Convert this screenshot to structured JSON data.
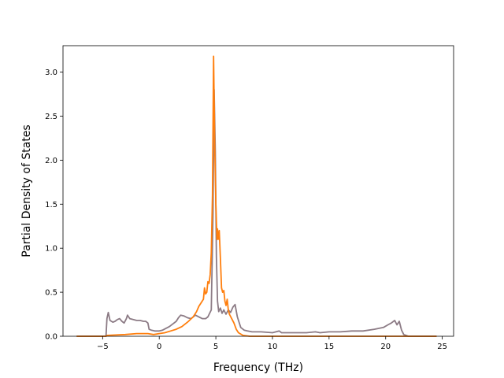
{
  "chart_data": {
    "type": "line",
    "title": "",
    "xlabel": "Frequency (THz)",
    "ylabel": "Partial Density of States",
    "xlim": [
      -8.5,
      26
    ],
    "ylim": [
      0,
      3.3
    ],
    "xticks": [
      -5,
      0,
      5,
      10,
      15,
      20,
      25
    ],
    "xtick_labels": [
      "−5",
      "0",
      "5",
      "10",
      "15",
      "20",
      "25"
    ],
    "yticks": [
      0.0,
      0.5,
      1.0,
      1.5,
      2.0,
      2.5,
      3.0
    ],
    "ytick_labels": [
      "0.0",
      "0.5",
      "1.0",
      "1.5",
      "2.0",
      "2.5",
      "3.0"
    ],
    "grid": false,
    "legend": "none",
    "series": [
      {
        "color": "#8c7b85",
        "points": [
          [
            -7.3,
            0.0
          ],
          [
            -5.0,
            0.0
          ],
          [
            -4.7,
            0.0
          ],
          [
            -4.62,
            0.2
          ],
          [
            -4.5,
            0.27
          ],
          [
            -4.35,
            0.18
          ],
          [
            -4.1,
            0.16
          ],
          [
            -3.9,
            0.17
          ],
          [
            -3.7,
            0.19
          ],
          [
            -3.5,
            0.2
          ],
          [
            -3.3,
            0.17
          ],
          [
            -3.1,
            0.15
          ],
          [
            -2.9,
            0.2
          ],
          [
            -2.8,
            0.24
          ],
          [
            -2.6,
            0.2
          ],
          [
            -2.3,
            0.19
          ],
          [
            -2.0,
            0.18
          ],
          [
            -1.7,
            0.18
          ],
          [
            -1.4,
            0.17
          ],
          [
            -1.2,
            0.17
          ],
          [
            -1.0,
            0.15
          ],
          [
            -0.9,
            0.08
          ],
          [
            -0.7,
            0.07
          ],
          [
            -0.4,
            0.06
          ],
          [
            0.0,
            0.06
          ],
          [
            0.3,
            0.07
          ],
          [
            0.6,
            0.09
          ],
          [
            0.9,
            0.11
          ],
          [
            1.2,
            0.14
          ],
          [
            1.5,
            0.17
          ],
          [
            1.7,
            0.21
          ],
          [
            1.9,
            0.24
          ],
          [
            2.2,
            0.23
          ],
          [
            2.5,
            0.21
          ],
          [
            2.8,
            0.2
          ],
          [
            3.0,
            0.22
          ],
          [
            3.2,
            0.24
          ],
          [
            3.5,
            0.22
          ],
          [
            3.8,
            0.2
          ],
          [
            4.1,
            0.2
          ],
          [
            4.3,
            0.22
          ],
          [
            4.6,
            0.3
          ],
          [
            4.75,
            1.4
          ],
          [
            4.85,
            2.8
          ],
          [
            4.95,
            2.1
          ],
          [
            5.05,
            0.9
          ],
          [
            5.15,
            0.4
          ],
          [
            5.25,
            0.28
          ],
          [
            5.4,
            0.32
          ],
          [
            5.55,
            0.26
          ],
          [
            5.7,
            0.3
          ],
          [
            5.9,
            0.25
          ],
          [
            6.1,
            0.3
          ],
          [
            6.3,
            0.27
          ],
          [
            6.5,
            0.33
          ],
          [
            6.7,
            0.36
          ],
          [
            6.9,
            0.22
          ],
          [
            7.2,
            0.1
          ],
          [
            7.5,
            0.07
          ],
          [
            7.8,
            0.06
          ],
          [
            8.2,
            0.05
          ],
          [
            9.0,
            0.05
          ],
          [
            10.0,
            0.04
          ],
          [
            10.6,
            0.06
          ],
          [
            10.8,
            0.04
          ],
          [
            12.0,
            0.04
          ],
          [
            13.0,
            0.04
          ],
          [
            13.8,
            0.05
          ],
          [
            14.2,
            0.04
          ],
          [
            15.0,
            0.05
          ],
          [
            16.0,
            0.05
          ],
          [
            17.0,
            0.06
          ],
          [
            18.0,
            0.06
          ],
          [
            19.0,
            0.08
          ],
          [
            19.8,
            0.1
          ],
          [
            20.2,
            0.13
          ],
          [
            20.5,
            0.15
          ],
          [
            20.8,
            0.18
          ],
          [
            21.0,
            0.13
          ],
          [
            21.2,
            0.17
          ],
          [
            21.4,
            0.07
          ],
          [
            21.6,
            0.02
          ],
          [
            22.0,
            0.0
          ],
          [
            24.5,
            0.0
          ]
        ]
      },
      {
        "color": "#ff7f0e",
        "points": [
          [
            -7.3,
            0.0
          ],
          [
            -5.0,
            0.0
          ],
          [
            -4.7,
            0.0
          ],
          [
            -4.6,
            0.01
          ],
          [
            -3.0,
            0.02
          ],
          [
            -2.0,
            0.03
          ],
          [
            -1.0,
            0.03
          ],
          [
            -0.5,
            0.02
          ],
          [
            0.0,
            0.03
          ],
          [
            0.5,
            0.04
          ],
          [
            1.0,
            0.06
          ],
          [
            1.5,
            0.08
          ],
          [
            2.0,
            0.11
          ],
          [
            2.5,
            0.16
          ],
          [
            3.0,
            0.22
          ],
          [
            3.3,
            0.28
          ],
          [
            3.5,
            0.34
          ],
          [
            3.7,
            0.38
          ],
          [
            3.9,
            0.42
          ],
          [
            4.0,
            0.55
          ],
          [
            4.1,
            0.48
          ],
          [
            4.2,
            0.5
          ],
          [
            4.3,
            0.62
          ],
          [
            4.4,
            0.6
          ],
          [
            4.5,
            0.7
          ],
          [
            4.6,
            0.95
          ],
          [
            4.7,
            1.6
          ],
          [
            4.8,
            3.18
          ],
          [
            4.9,
            2.2
          ],
          [
            5.0,
            1.5
          ],
          [
            5.1,
            1.1
          ],
          [
            5.15,
            1.22
          ],
          [
            5.2,
            1.1
          ],
          [
            5.3,
            1.2
          ],
          [
            5.4,
            0.9
          ],
          [
            5.5,
            0.55
          ],
          [
            5.6,
            0.5
          ],
          [
            5.7,
            0.52
          ],
          [
            5.8,
            0.4
          ],
          [
            5.9,
            0.35
          ],
          [
            6.0,
            0.42
          ],
          [
            6.1,
            0.3
          ],
          [
            6.2,
            0.25
          ],
          [
            6.4,
            0.2
          ],
          [
            6.6,
            0.15
          ],
          [
            6.8,
            0.08
          ],
          [
            7.0,
            0.04
          ],
          [
            7.4,
            0.01
          ],
          [
            8.0,
            0.0
          ],
          [
            24.5,
            0.0
          ]
        ]
      }
    ]
  }
}
